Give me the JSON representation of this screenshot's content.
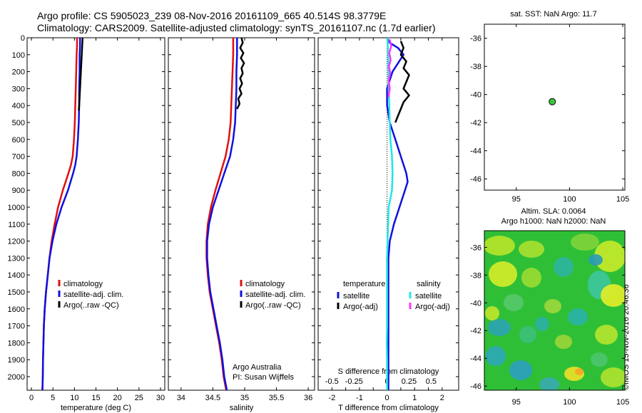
{
  "header": {
    "line1": "Argo profile: CS 5905023_239 08-Nov-2016 20161109_665 40.514S 98.3779E",
    "line2": "Climatology: CARS2009. Satellite-adjusted climatology: synTS_20161107.nc (1.7d earlier)"
  },
  "colors": {
    "climatology": "#e01010",
    "satellite": "#1010e0",
    "argo": "#000000",
    "salinity_satellite": "#22e5e5",
    "salinity_argo": "#ff33ff",
    "marker": "#3cc83c"
  },
  "chart_data": [
    {
      "type": "line",
      "name": "temperature-profile",
      "xlabel": "temperature (deg C)",
      "ylabel": "",
      "xlim": [
        -1,
        31
      ],
      "ylim": [
        2080,
        0
      ],
      "xticks": [
        0,
        5,
        10,
        15,
        20,
        25,
        30
      ],
      "yticks": [
        0,
        100,
        200,
        300,
        400,
        500,
        600,
        700,
        800,
        900,
        1000,
        1100,
        1200,
        1300,
        1400,
        1500,
        1600,
        1700,
        1800,
        1900,
        2000
      ],
      "legend": {
        "position": "lower-center",
        "entries": [
          "climatology",
          "satellite-adj. clim.",
          "Argo(..raw -QC)"
        ]
      },
      "series": [
        {
          "name": "climatology",
          "x": [
            10.6,
            10.6,
            10.5,
            10.4,
            10.3,
            10.2,
            10.1,
            9.9,
            9.6,
            9.2,
            8.6,
            7.3,
            6.2,
            5.4,
            4.7,
            4.2,
            3.8,
            3.4,
            3.1,
            2.9,
            2.8,
            2.7,
            2.65,
            2.6,
            2.55
          ],
          "y": [
            0,
            50,
            100,
            200,
            300,
            400,
            500,
            600,
            700,
            750,
            800,
            900,
            1000,
            1100,
            1200,
            1300,
            1400,
            1500,
            1600,
            1700,
            1800,
            1900,
            2000,
            2050,
            2080
          ]
        },
        {
          "name": "satellite-adj. clim.",
          "x": [
            11.3,
            11.3,
            11.2,
            11.2,
            11.1,
            11.1,
            11.0,
            10.8,
            10.5,
            10.2,
            9.7,
            8.5,
            7.0,
            5.8,
            4.9,
            4.2,
            3.8,
            3.4,
            3.1,
            2.9,
            2.8,
            2.7,
            2.65,
            2.6,
            2.55
          ],
          "y": [
            0,
            50,
            100,
            200,
            300,
            400,
            500,
            600,
            700,
            750,
            800,
            900,
            1000,
            1100,
            1200,
            1300,
            1400,
            1500,
            1600,
            1700,
            1800,
            1900,
            2000,
            2050,
            2080
          ]
        },
        {
          "name": "Argo(..raw -QC)",
          "x": [
            11.9,
            11.8,
            11.7,
            11.6,
            11.5,
            11.4,
            11.3,
            11.2,
            11.1,
            11.0
          ],
          "y": [
            0,
            50,
            100,
            150,
            200,
            250,
            300,
            350,
            400,
            430
          ]
        }
      ]
    },
    {
      "type": "line",
      "name": "salinity-profile",
      "xlabel": "salinity",
      "ylabel": "",
      "xlim": [
        33.8,
        36.1
      ],
      "ylim": [
        2080,
        0
      ],
      "xticks": [
        34,
        34.5,
        35,
        35.5,
        36
      ],
      "legend": {
        "position": "lower-center",
        "entries": [
          "climatology",
          "satellite-adj. clim.",
          "Argo(..raw -QC)"
        ]
      },
      "annotations": [
        "Argo Australia",
        "PI: Susan Wijffels"
      ],
      "series": [
        {
          "name": "climatology",
          "x": [
            34.82,
            34.82,
            34.81,
            34.8,
            34.79,
            34.78,
            34.75,
            34.7,
            34.62,
            34.54,
            34.47,
            34.42,
            34.4,
            34.4,
            34.42,
            34.45,
            34.5,
            34.55,
            34.6,
            34.64,
            34.67,
            34.69,
            34.7,
            34.71
          ],
          "y": [
            0,
            100,
            200,
            300,
            400,
            500,
            600,
            700,
            800,
            900,
            1000,
            1100,
            1200,
            1300,
            1400,
            1500,
            1600,
            1700,
            1800,
            1900,
            2000,
            2040,
            2060,
            2080
          ]
        },
        {
          "name": "satellite-adj. clim.",
          "x": [
            34.88,
            34.88,
            34.87,
            34.87,
            34.86,
            34.85,
            34.82,
            34.77,
            34.68,
            34.59,
            34.5,
            34.44,
            34.41,
            34.41,
            34.43,
            34.46,
            34.51,
            34.56,
            34.61,
            34.65,
            34.68,
            34.7,
            34.71,
            34.72
          ],
          "y": [
            0,
            100,
            200,
            300,
            400,
            500,
            600,
            700,
            800,
            900,
            1000,
            1100,
            1200,
            1300,
            1400,
            1500,
            1600,
            1700,
            1800,
            1900,
            2000,
            2040,
            2060,
            2080
          ]
        },
        {
          "name": "Argo(..raw -QC)",
          "x": [
            34.95,
            34.97,
            34.93,
            34.98,
            34.94,
            34.99,
            34.95,
            34.97,
            34.93,
            34.96,
            34.92,
            34.95,
            34.9,
            34.92,
            34.88
          ],
          "y": [
            0,
            30,
            60,
            90,
            120,
            150,
            180,
            210,
            240,
            270,
            300,
            330,
            360,
            390,
            420
          ]
        }
      ]
    },
    {
      "type": "line",
      "name": "difference-profile",
      "xlabel": "T difference from climatology",
      "ylabel": "",
      "xlim": [
        -2.5,
        2.6
      ],
      "ylim": [
        2080,
        0
      ],
      "xticks": [
        -2,
        -1.5,
        -1,
        -0.5,
        0,
        0.5,
        1,
        1.5,
        2
      ],
      "xtick_labels": [
        "-2",
        "",
        "-1",
        "",
        "0",
        "",
        "1",
        "",
        "2"
      ],
      "secondary_axis": {
        "label": "S difference from climatology",
        "ticks": [
          "-0.5",
          "-0.25",
          "0",
          "0.25",
          "0.5"
        ]
      },
      "legend": {
        "position": "lower-center",
        "group1_title": "temperature",
        "group2_title": "salinity",
        "entries": [
          "satellite",
          "Argo(-adj)",
          "satellite",
          "Argo(-adj)"
        ]
      },
      "series": [
        {
          "name": "temperature satellite",
          "x": [
            0,
            0.1,
            0.4,
            0.6,
            0.4,
            0.2,
            0.1,
            0.0,
            0.0,
            0.05,
            0.1,
            0.2,
            0.3,
            0.5,
            0.7,
            0.75,
            0.65,
            0.45,
            0.25,
            0.1,
            0.05,
            0.05,
            0.05,
            0.05,
            0.05,
            0.05
          ],
          "y": [
            0,
            30,
            60,
            100,
            150,
            200,
            250,
            300,
            400,
            450,
            500,
            550,
            600,
            700,
            800,
            850,
            900,
            1000,
            1100,
            1200,
            1300,
            1500,
            1700,
            1900,
            2000,
            2080
          ]
        },
        {
          "name": "temperature Argo(-adj)",
          "x": [
            0.5,
            0.6,
            0.5,
            0.7,
            0.6,
            0.8,
            0.7,
            0.6,
            0.8,
            0.6,
            0.5,
            0.4,
            0.3
          ],
          "y": [
            20,
            60,
            100,
            140,
            180,
            220,
            260,
            300,
            340,
            380,
            420,
            460,
            500
          ]
        },
        {
          "name": "salinity satellite",
          "x": [
            0.02,
            0.04,
            0.05,
            0.06,
            0.08,
            0.1,
            0.12,
            0.15,
            0.18,
            0.2,
            0.18,
            0.12,
            0.06,
            0.04,
            0.02,
            0.0,
            0.0,
            0.0,
            0.0,
            0.0,
            -0.01,
            0.0,
            0.0
          ],
          "y": [
            0,
            100,
            200,
            300,
            400,
            500,
            600,
            650,
            700,
            800,
            900,
            950,
            1000,
            1100,
            1200,
            1300,
            1400,
            1500,
            1600,
            1700,
            1800,
            1900,
            2080
          ]
        },
        {
          "name": "salinity Argo(-adj)",
          "x": [
            0.1,
            0.15,
            0.08,
            0.13,
            0.07,
            0.12,
            0.06,
            0.1,
            0.05
          ],
          "y": [
            10,
            50,
            90,
            130,
            170,
            210,
            250,
            300,
            350
          ]
        }
      ]
    },
    {
      "type": "scatter",
      "name": "location-map",
      "title": "sat. SST: NaN Argo: 11.7",
      "xlim": [
        92,
        105.2
      ],
      "ylim": [
        -46.8,
        -35
      ],
      "xticks": [
        95,
        100,
        105
      ],
      "yticks": [
        -36,
        -38,
        -40,
        -42,
        -44,
        -46
      ],
      "points": [
        {
          "x": 98.38,
          "y": -40.51
        }
      ]
    },
    {
      "type": "heatmap",
      "name": "sla-map",
      "title_line1": "Altim. SLA: 0.0064",
      "title_line2": "Argo h1000: NaN h2000: NaN",
      "xlim": [
        92,
        105.2
      ],
      "ylim": [
        -46.3,
        -34.8
      ],
      "xticks": [
        95,
        100,
        105
      ],
      "yticks": [
        -36,
        -38,
        -40,
        -42,
        -44,
        -46
      ],
      "colormap": "blue-cyan-green-yellow-red"
    }
  ],
  "stamp": "©IMOS 15-Nov-2016 20:46:36"
}
